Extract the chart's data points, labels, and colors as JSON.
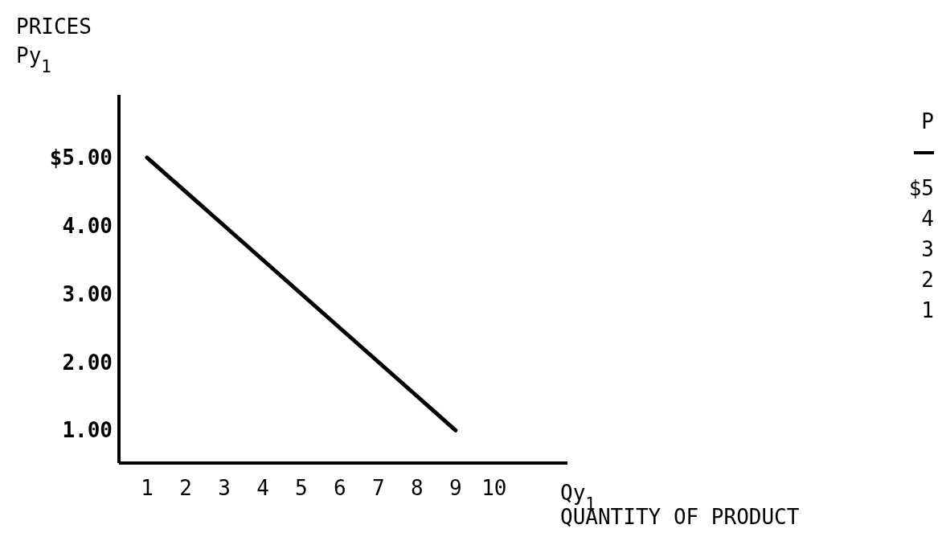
{
  "chart_data": {
    "type": "line",
    "xlabel": "Qy$_{1}$\nQUANTITY OF PRODUCT",
    "ylabel": "PRICES\nPy$_{1}$",
    "x": [
      1,
      9
    ],
    "series": [
      {
        "color": "#000000",
        "values": [
          5,
          1
        ]
      }
    ],
    "xlim": [
      0.27,
      11.9
    ],
    "xticks": [
      1,
      2,
      3,
      4,
      5,
      6,
      7,
      8,
      9,
      10
    ],
    "ylim": [
      0.52,
      5.92
    ],
    "yticks": [
      {
        "value": 1,
        "label": "1.00"
      },
      {
        "value": 2,
        "label": "2.00"
      },
      {
        "value": 3,
        "label": "3.00"
      },
      {
        "value": 4,
        "label": "4.00"
      },
      {
        "value": 5,
        "label": "$5.00"
      }
    ],
    "grid": false,
    "marker": "none",
    "line_style": "solid",
    "annotations": [
      "P",
      "$5",
      "4",
      "3",
      "2",
      "1"
    ]
  }
}
